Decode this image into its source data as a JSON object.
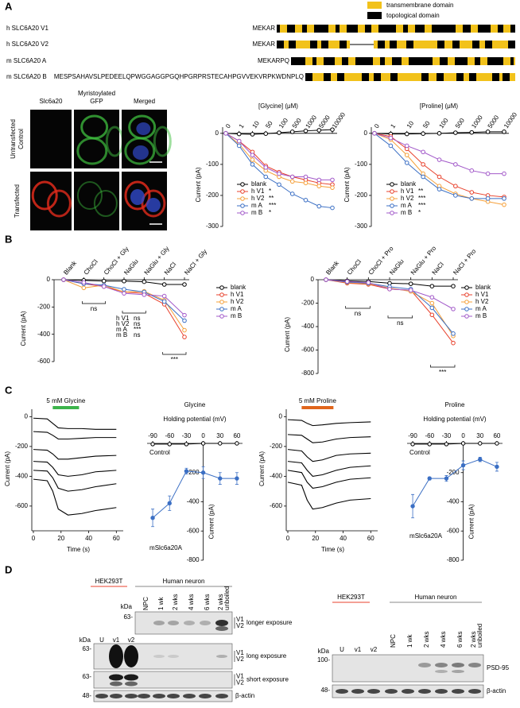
{
  "panel_labels": [
    "A",
    "B",
    "C",
    "D"
  ],
  "domain_legend": [
    {
      "label": "transmembrane domain",
      "color": "#f2c21b"
    },
    {
      "label": "topological domain",
      "color": "#000000"
    }
  ],
  "sequences": [
    {
      "name": "h SLC6A20 V1",
      "prefix": "MEKAR"
    },
    {
      "name": "h SLC6A20 V2",
      "prefix": "MEKAR"
    },
    {
      "name": "m SLC6A20 A",
      "prefix": "MEKARPQ"
    },
    {
      "name": "m SLC6A20 B",
      "prefix": "MESPSAHAVSLPEDEELQPWGGAGGPGQHPGRPRSTECAHPGVVEKVRPKWDNPLQ"
    }
  ],
  "microscopy": {
    "columns": [
      {
        "label": [
          "Slc6a20"
        ],
        "color": "#e0201b"
      },
      {
        "label": [
          "Myristoylated",
          "GFP"
        ],
        "color": "#2ca02c"
      },
      {
        "label": [
          "Merged"
        ],
        "color": "#000000"
      }
    ],
    "rows": [
      [
        "Untransfected",
        "Control"
      ],
      [
        "Transfected"
      ]
    ]
  },
  "chart_data": [
    {
      "type": "line",
      "title": "[Glycine] (μM)",
      "ylabel": "Current (pA)",
      "categories": [
        "0",
        "1",
        "10",
        "50",
        "100",
        "500",
        "1000",
        "5000",
        "10000"
      ],
      "ylim": [
        -300,
        20
      ],
      "yticks": [
        0,
        -100,
        -200,
        -300
      ],
      "series": [
        {
          "name": "blank",
          "color": "#000000",
          "values": [
            0,
            -2,
            -3,
            -1,
            2,
            5,
            8,
            10,
            12
          ]
        },
        {
          "name": "h V1",
          "color": "#e8412c",
          "values": [
            0,
            -25,
            -60,
            -105,
            -125,
            -140,
            -150,
            -160,
            -165
          ],
          "significance": "*"
        },
        {
          "name": "h V2",
          "color": "#f5a03a",
          "values": [
            0,
            -35,
            -85,
            -120,
            -140,
            -155,
            -160,
            -170,
            -175
          ],
          "significance": "**"
        },
        {
          "name": "m A",
          "color": "#3b6fc4",
          "values": [
            0,
            -40,
            -100,
            -140,
            -165,
            -195,
            -215,
            -235,
            -240
          ],
          "significance": "***"
        },
        {
          "name": "m B",
          "color": "#a259c9",
          "values": [
            0,
            -25,
            -70,
            -110,
            -130,
            -140,
            -140,
            -150,
            -150
          ],
          "significance": "*"
        }
      ]
    },
    {
      "type": "line",
      "title": "[Proline] (μM)",
      "ylabel": "Current (pA)",
      "categories": [
        "0",
        "1",
        "10",
        "50",
        "100",
        "500",
        "1000",
        "5000",
        "10000"
      ],
      "ylim": [
        -300,
        20
      ],
      "yticks": [
        0,
        -100,
        -200,
        -300
      ],
      "series": [
        {
          "name": "blank",
          "color": "#000000",
          "values": [
            0,
            -2,
            -2,
            -1,
            0,
            2,
            3,
            5,
            5
          ]
        },
        {
          "name": "h V1",
          "color": "#e8412c",
          "values": [
            0,
            -10,
            -50,
            -100,
            -140,
            -170,
            -190,
            -200,
            -205
          ],
          "significance": "**"
        },
        {
          "name": "h V2",
          "color": "#f5a03a",
          "values": [
            0,
            -20,
            -70,
            -130,
            -170,
            -195,
            -210,
            -220,
            -230
          ],
          "significance": "***"
        },
        {
          "name": "m A",
          "color": "#3b6fc4",
          "values": [
            0,
            -40,
            -95,
            -140,
            -180,
            -200,
            -210,
            -210,
            -210
          ],
          "significance": "***"
        },
        {
          "name": "m B",
          "color": "#a259c9",
          "values": [
            0,
            -15,
            -40,
            -60,
            -85,
            -100,
            -120,
            -130,
            -130
          ],
          "significance": "*"
        }
      ]
    },
    {
      "type": "line",
      "ylabel": "Current (pA)",
      "categories": [
        "Blank",
        "ChoCl",
        "ChoCl + Gly",
        "NaGlu",
        "NaGlu + Gly",
        "NaCl",
        "NaCl + Gly"
      ],
      "ylim": [
        -600,
        0
      ],
      "yticks": [
        0,
        -200,
        -400,
        -600
      ],
      "series": [
        {
          "name": "blank",
          "color": "#000000",
          "values": [
            0,
            -5,
            -10,
            -10,
            -15,
            -35,
            -35
          ]
        },
        {
          "name": "h V1",
          "color": "#e8412c",
          "values": [
            0,
            -30,
            -50,
            -90,
            -100,
            -180,
            -420
          ]
        },
        {
          "name": "h V2",
          "color": "#f5a03a",
          "values": [
            0,
            -60,
            -40,
            -90,
            -85,
            -150,
            -370
          ]
        },
        {
          "name": "m A",
          "color": "#3b6fc4",
          "values": [
            0,
            -30,
            -40,
            -70,
            -90,
            -160,
            -300
          ]
        },
        {
          "name": "m B",
          "color": "#a259c9",
          "values": [
            0,
            -20,
            -50,
            -100,
            -110,
            -120,
            -260
          ]
        }
      ],
      "comparisons": [
        "ns",
        [
          [
            "h V1",
            "ns"
          ],
          [
            "h V2",
            "ns"
          ],
          [
            "m A",
            "***"
          ],
          [
            "m B",
            "ns"
          ]
        ],
        "***"
      ]
    },
    {
      "type": "line",
      "ylabel": "Current (pA)",
      "categories": [
        "Blank",
        "ChoCl",
        "ChoCl + Pro",
        "NaGlu",
        "NaGlu + Pro",
        "NaCl",
        "NaCl + Pro"
      ],
      "ylim": [
        -800,
        0
      ],
      "yticks": [
        0,
        -200,
        -400,
        -600,
        -800
      ],
      "series": [
        {
          "name": "blank",
          "color": "#000000",
          "values": [
            0,
            -10,
            -15,
            -30,
            -35,
            -55,
            -55
          ]
        },
        {
          "name": "h V1",
          "color": "#e8412c",
          "values": [
            0,
            -30,
            -40,
            -80,
            -90,
            -300,
            -540
          ]
        },
        {
          "name": "h V2",
          "color": "#f5a03a",
          "values": [
            0,
            -25,
            -35,
            -70,
            -100,
            -200,
            -480
          ]
        },
        {
          "name": "m A",
          "color": "#3b6fc4",
          "values": [
            0,
            -20,
            -30,
            -60,
            -80,
            -240,
            -460
          ]
        },
        {
          "name": "m B",
          "color": "#a259c9",
          "values": [
            0,
            -15,
            -25,
            -80,
            -90,
            -150,
            -250
          ]
        }
      ],
      "comparisons": [
        "ns",
        "ns",
        "***"
      ]
    },
    {
      "type": "trace",
      "xlabel": "Time (s)",
      "ylabel": "Current (pA)",
      "x": [
        0,
        10,
        14,
        18,
        25,
        35,
        45,
        60
      ],
      "xlim": [
        0,
        65
      ],
      "xticks": [
        0,
        20,
        40,
        60
      ],
      "ylim": [
        -750,
        50
      ],
      "yticks": [
        0,
        -200,
        -400,
        -600
      ],
      "stimulus": {
        "label": "5 mM Glycine",
        "range": [
          14,
          33
        ],
        "color": "#3cb44b"
      },
      "series": [
        {
          "color": "#000000",
          "values": [
            -10,
            -15,
            -45,
            -75,
            -80,
            -80,
            -85,
            -85
          ]
        },
        {
          "color": "#000000",
          "values": [
            -100,
            -105,
            -125,
            -150,
            -150,
            -145,
            -140,
            -140
          ]
        },
        {
          "color": "#000000",
          "values": [
            -220,
            -225,
            -250,
            -285,
            -285,
            -275,
            -265,
            -260
          ]
        },
        {
          "color": "#000000",
          "values": [
            -300,
            -305,
            -340,
            -390,
            -400,
            -390,
            -370,
            -360
          ]
        },
        {
          "color": "#000000",
          "values": [
            -360,
            -365,
            -410,
            -480,
            -500,
            -490,
            -470,
            -450
          ]
        },
        {
          "color": "#000000",
          "values": [
            -420,
            -430,
            -500,
            -620,
            -660,
            -650,
            -630,
            -610
          ]
        }
      ]
    },
    {
      "type": "iv",
      "title": "Glycine",
      "xlabel": "Holding potential (mV)",
      "ylabel": "Current (pA)",
      "x": [
        -90,
        -60,
        -30,
        0,
        30,
        60
      ],
      "xlim": [
        -100,
        70
      ],
      "xticks": [
        -90,
        -60,
        -30,
        0,
        30,
        60
      ],
      "ylim": [
        -800,
        0
      ],
      "yticks": [
        -200,
        -400,
        -600,
        -800
      ],
      "series": [
        {
          "name": "Control",
          "color": "#000000",
          "values": [
            -5,
            -5,
            -5,
            0,
            0,
            0
          ]
        },
        {
          "name": "mSlc6a20A",
          "color": "#3b6fc4",
          "values": [
            -510,
            -410,
            -190,
            -200,
            -240,
            -240
          ],
          "errors": [
            60,
            50,
            20,
            40,
            40,
            40
          ]
        }
      ]
    },
    {
      "type": "trace",
      "xlabel": "Time (s)",
      "ylabel": "Current (pA)",
      "x": [
        0,
        10,
        14,
        18,
        25,
        35,
        45,
        60
      ],
      "xlim": [
        0,
        65
      ],
      "xticks": [
        0,
        20,
        40,
        60
      ],
      "ylim": [
        -750,
        50
      ],
      "yticks": [
        0,
        -200,
        -400,
        -600
      ],
      "stimulus": {
        "label": "5 mM Proline",
        "range": [
          10,
          33
        ],
        "color": "#e0651b"
      },
      "series": [
        {
          "color": "#000000",
          "values": [
            -20,
            -25,
            -45,
            -60,
            -55,
            -45,
            -40,
            -35
          ]
        },
        {
          "color": "#000000",
          "values": [
            -120,
            -125,
            -150,
            -175,
            -170,
            -150,
            -140,
            -135
          ]
        },
        {
          "color": "#000000",
          "values": [
            -220,
            -230,
            -270,
            -300,
            -290,
            -260,
            -250,
            -245
          ]
        },
        {
          "color": "#000000",
          "values": [
            -300,
            -310,
            -360,
            -400,
            -390,
            -360,
            -340,
            -330
          ]
        },
        {
          "color": "#000000",
          "values": [
            -360,
            -375,
            -440,
            -480,
            -470,
            -440,
            -420,
            -410
          ]
        },
        {
          "color": "#000000",
          "values": [
            -440,
            -460,
            -560,
            -620,
            -610,
            -580,
            -560,
            -550
          ]
        }
      ]
    },
    {
      "type": "iv",
      "title": "Proline",
      "xlabel": "Holding potential (mV)",
      "ylabel": "Current (pA)",
      "x": [
        -90,
        -60,
        -30,
        0,
        30,
        60
      ],
      "xlim": [
        -100,
        70
      ],
      "xticks": [
        -90,
        -60,
        -30,
        0,
        30,
        60
      ],
      "ylim": [
        -800,
        0
      ],
      "yticks": [
        -200,
        -400,
        -600,
        -800
      ],
      "series": [
        {
          "name": "Control",
          "color": "#000000",
          "values": [
            -5,
            -5,
            -5,
            0,
            0,
            0
          ]
        },
        {
          "name": "mSlc6a20A",
          "color": "#3b6fc4",
          "values": [
            -430,
            -240,
            -240,
            -150,
            -110,
            -160
          ],
          "errors": [
            80,
            10,
            20,
            30,
            15,
            30
          ]
        }
      ]
    }
  ],
  "blots": [
    {
      "groups": [
        "HEK293T",
        "Human neuron"
      ],
      "lanes": [
        "U",
        "v1",
        "v2",
        "NPC",
        "1 wk",
        "2 wks",
        "4 wks",
        "6 wks",
        [
          "2 wks",
          "unboiled"
        ]
      ],
      "kda": "kDa",
      "rows": [
        {
          "marker": "63-",
          "isoforms": [
            "V1",
            "V2"
          ],
          "label": "longer exposure"
        },
        {
          "marker": "63-",
          "isoforms": [
            "V1",
            "V2"
          ],
          "label": "long exposure"
        },
        {
          "marker": "63-",
          "isoforms": [
            "V1",
            "V2"
          ],
          "label": "short exposure"
        },
        {
          "marker": "48-",
          "label": "β-actin"
        }
      ]
    },
    {
      "groups": [
        "HEK293T",
        "Human neuron"
      ],
      "lanes": [
        "U",
        "v1",
        "v2",
        "NPC",
        "1 wk",
        "2 wks",
        "4 wks",
        "6 wks",
        [
          "2 wks",
          "unboiled"
        ]
      ],
      "kda": "kDa",
      "rows": [
        {
          "marker": "100-",
          "label": "PSD-95"
        },
        {
          "marker": "48-",
          "label": "β-actin"
        }
      ]
    }
  ]
}
